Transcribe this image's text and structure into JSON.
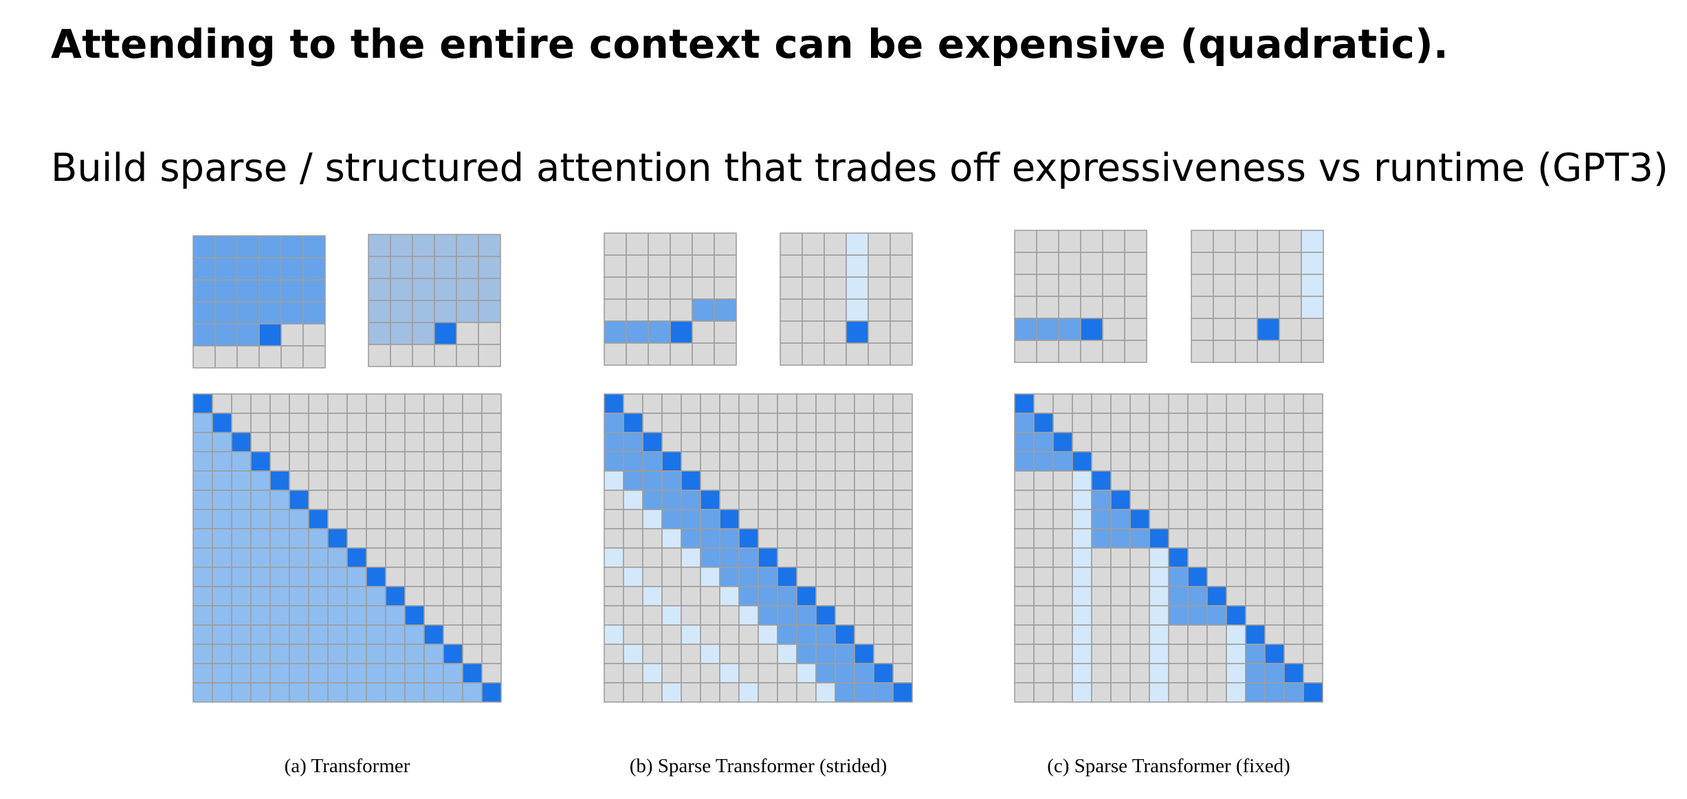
{
  "slide": {
    "title": "Attending to the entire context can be expensive (quadratic).",
    "subtitle": "Build sparse / structured attention that trades off expressiveness vs runtime (GPT3)"
  },
  "colors": {
    "background": "#d9d9d9",
    "grid_line": "#9e9e9e",
    "query": "#1a73e8",
    "attended": "#8fbdf0",
    "attended_small": "#a0bfe2",
    "strong": "#66a3ea",
    "light": "#d4e8fb"
  },
  "figure": {
    "panels": [
      {
        "id": "a",
        "caption": "(a) Transformer",
        "small_grids": [
          {
            "pattern": "dense-full-query",
            "query_row": 4,
            "query_col": 3,
            "fill": "strong"
          },
          {
            "pattern": "dense-full-query",
            "query_row": 4,
            "query_col": 3,
            "fill": "attended_small"
          }
        ],
        "matrix": {
          "pattern": "dense"
        }
      },
      {
        "id": "b",
        "caption": "(b) Sparse Transformer (strided)",
        "small_grids": [
          {
            "pattern": "strided-local",
            "query_row": 4,
            "query_col": 3
          },
          {
            "pattern": "strided-column",
            "query_row": 4,
            "query_col": 3
          }
        ],
        "matrix": {
          "pattern": "strided"
        }
      },
      {
        "id": "c",
        "caption": "(c) Sparse Transformer (fixed)",
        "small_grids": [
          {
            "pattern": "fixed-block",
            "query_row": 4,
            "query_col": 3
          },
          {
            "pattern": "fixed-column",
            "query_row": 4,
            "query_col": 3
          }
        ],
        "matrix": {
          "pattern": "fixed"
        }
      }
    ]
  }
}
